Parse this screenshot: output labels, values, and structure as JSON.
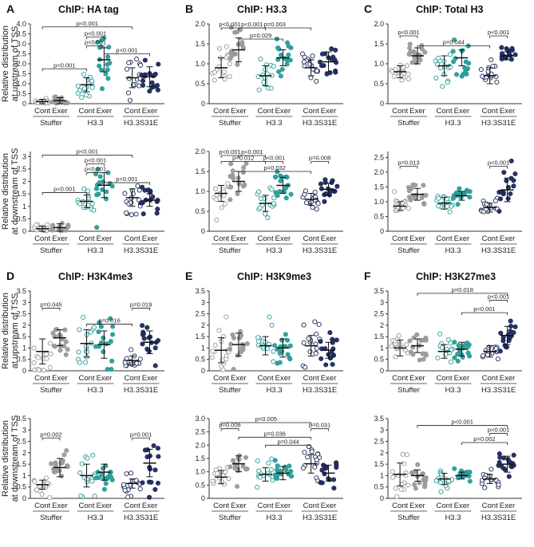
{
  "figure": {
    "y_label_line1": "Relative distribution",
    "y_label_upstream": "at upstream of TSS",
    "y_label_downstream": "at downstream of TSS"
  },
  "colors": {
    "Stuffer": "#9a9a9a",
    "H3.3": "#2a9d98",
    "H3.3S31E": "#1e2a5a"
  },
  "chart_data": [
    {
      "type": "scatter",
      "letter": "A",
      "title": "ChIP: HA tag",
      "region": "upstream",
      "ylim": [
        0,
        4.0
      ],
      "ticks": [
        0,
        0.5,
        1.0,
        1.5,
        2.0,
        2.5,
        3.0,
        3.5,
        4.0
      ],
      "tick_labels": [
        "0",
        "0.5",
        "1.0",
        "1.5",
        "2.0",
        "2.5",
        "3.0",
        "3.5",
        "4.0"
      ],
      "conditions": [
        "Cont",
        "Exer",
        "Cont",
        "Exer",
        "Cont",
        "Exer"
      ],
      "groups": [
        "Stuffer",
        "H3.3",
        "H3.3S31E"
      ],
      "means": [
        0.1,
        0.15,
        0.95,
        2.2,
        1.3,
        1.35
      ],
      "sds": [
        0.12,
        0.15,
        0.35,
        0.6,
        0.5,
        0.5
      ],
      "brackets": [
        {
          "from": 0,
          "to": 4,
          "label": "p<0.001"
        },
        {
          "from": 2,
          "to": 3,
          "label": "p<0.001"
        },
        {
          "from": 0,
          "to": 2,
          "label": "p<0.001"
        },
        {
          "from": 2,
          "to": 3,
          "label": "p<0.001"
        },
        {
          "from": 3,
          "to": 5,
          "label": "p<0.001"
        }
      ],
      "bracket_y": [
        3.85,
        2.9,
        1.75,
        3.35,
        2.5
      ]
    },
    {
      "type": "scatter",
      "letter": "B",
      "title": "ChIP: H3.3",
      "region": "upstream",
      "ylim": [
        0,
        2.0
      ],
      "ticks": [
        0,
        0.5,
        1.0,
        1.5,
        2.0
      ],
      "tick_labels": [
        "0",
        "0.5",
        "1.0",
        "1.5",
        "2.0"
      ],
      "conditions": [
        "Cont",
        "Exer",
        "Cont",
        "Exer",
        "Cont",
        "Exer"
      ],
      "groups": [
        "Stuffer",
        "H3.3",
        "H3.3S31E"
      ],
      "means": [
        0.9,
        1.35,
        0.7,
        1.15,
        0.9,
        1.05
      ],
      "sds": [
        0.25,
        0.3,
        0.25,
        0.2,
        0.2,
        0.25
      ],
      "brackets": [
        {
          "from": 0,
          "to": 1,
          "label": "p<0.001"
        },
        {
          "from": 1,
          "to": 2,
          "label": "p<0.001"
        },
        {
          "from": 1,
          "to": 4,
          "label": "p=0.003"
        },
        {
          "from": 1,
          "to": 3,
          "label": "p=0.029"
        }
      ],
      "bracket_y": [
        1.9,
        1.9,
        1.9,
        1.62
      ]
    },
    {
      "type": "scatter",
      "letter": "C",
      "title": "ChIP: Total H3",
      "region": "upstream",
      "ylim": [
        0,
        2.0
      ],
      "ticks": [
        0,
        0.5,
        1.0,
        1.5,
        2.0
      ],
      "tick_labels": [
        "0",
        "0.5",
        "1.0",
        "1.5",
        "2.0"
      ],
      "conditions": [
        "Cont",
        "Exer",
        "Cont",
        "Exer",
        "Cont",
        "Exer"
      ],
      "groups": [
        "Stuffer",
        "H3.3",
        "H3.3S31E"
      ],
      "means": [
        0.8,
        1.2,
        0.95,
        1.15,
        0.7,
        1.2
      ],
      "sds": [
        0.15,
        0.2,
        0.25,
        0.2,
        0.2,
        0.1
      ],
      "brackets": [
        {
          "from": 0,
          "to": 1,
          "label": "p<0.001"
        },
        {
          "from": 4,
          "to": 5,
          "label": "p<0.001"
        },
        {
          "from": 1,
          "to": 4,
          "label": "p=0.044"
        }
      ],
      "bracket_y": [
        1.7,
        1.7,
        1.45
      ]
    },
    {
      "type": "scatter",
      "letter": "",
      "title": "",
      "region": "downstream",
      "ylim": [
        0,
        3.2
      ],
      "ticks": [
        0,
        0.5,
        1.0,
        1.5,
        2.0,
        2.5,
        3.0
      ],
      "tick_labels": [
        "0",
        "0.5",
        "1",
        "1.5",
        "2",
        "2.5",
        "3"
      ],
      "conditions": [
        "Cont",
        "Exer",
        "Cont",
        "Exer",
        "Cont",
        "Exer"
      ],
      "groups": [
        "Stuffer",
        "H3.3",
        "H3.3S31E"
      ],
      "means": [
        0.1,
        0.15,
        1.2,
        1.85,
        1.35,
        1.25
      ],
      "sds": [
        0.1,
        0.15,
        0.25,
        0.5,
        0.35,
        0.25
      ],
      "brackets": [
        {
          "from": 0,
          "to": 4,
          "label": "p<0.001"
        },
        {
          "from": 2,
          "to": 3,
          "label": "p<0.001"
        },
        {
          "from": 2,
          "to": 3,
          "label": "p<0.001"
        },
        {
          "from": 0,
          "to": 2,
          "label": "p<0.001"
        },
        {
          "from": 3,
          "to": 5,
          "label": "p<0.001"
        }
      ],
      "bracket_y": [
        3.05,
        2.7,
        2.35,
        1.55,
        1.95
      ]
    },
    {
      "type": "scatter",
      "letter": "",
      "title": "",
      "region": "downstream",
      "ylim": [
        0,
        2.0
      ],
      "ticks": [
        0,
        0.5,
        1.0,
        1.5,
        2.0
      ],
      "tick_labels": [
        "0",
        "0.5",
        "1.0",
        "1.5",
        "2.0"
      ],
      "conditions": [
        "Cont",
        "Exer",
        "Cont",
        "Exer",
        "Cont",
        "Exer"
      ],
      "groups": [
        "Stuffer",
        "H3.3",
        "H3.3S31E"
      ],
      "means": [
        0.95,
        1.25,
        0.7,
        1.15,
        0.8,
        1.05
      ],
      "sds": [
        0.2,
        0.25,
        0.2,
        0.2,
        0.15,
        0.15
      ],
      "brackets": [
        {
          "from": 0,
          "to": 1,
          "label": "p<0.001"
        },
        {
          "from": 1,
          "to": 2,
          "label": "p<0.001"
        },
        {
          "from": 0,
          "to": 2,
          "label": "p=0.012"
        },
        {
          "from": 2,
          "to": 3,
          "label": "p<0.001"
        },
        {
          "from": 4,
          "to": 5,
          "label": "p=0.008"
        },
        {
          "from": 1,
          "to": 4,
          "label": "p=0.032"
        }
      ],
      "bracket_y": [
        1.9,
        1.9,
        1.75,
        1.75,
        1.75,
        1.5
      ]
    },
    {
      "type": "scatter",
      "letter": "",
      "title": "",
      "region": "downstream",
      "ylim": [
        0,
        2.7
      ],
      "ticks": [
        0,
        0.5,
        1.0,
        1.5,
        2.0,
        2.5
      ],
      "tick_labels": [
        "0",
        "0.5",
        "1.0",
        "1.5",
        "2.0",
        "2.5"
      ],
      "conditions": [
        "Cont",
        "Exer",
        "Cont",
        "Exer",
        "Cont",
        "Exer"
      ],
      "groups": [
        "Stuffer",
        "H3.3",
        "H3.3S31E"
      ],
      "means": [
        0.85,
        1.25,
        0.95,
        1.2,
        0.8,
        1.4
      ],
      "sds": [
        0.15,
        0.2,
        0.2,
        0.15,
        0.15,
        0.4
      ],
      "brackets": [
        {
          "from": 0,
          "to": 1,
          "label": "p=0.013"
        },
        {
          "from": 4,
          "to": 5,
          "label": "p<0.001"
        }
      ],
      "bracket_y": [
        2.2,
        2.2
      ]
    },
    {
      "type": "scatter",
      "letter": "D",
      "title": "ChIP: H3K4me3",
      "region": "upstream",
      "ylim": [
        0,
        3.5
      ],
      "ticks": [
        0,
        0.5,
        1.0,
        1.5,
        2.0,
        2.5,
        3.0,
        3.5
      ],
      "tick_labels": [
        "0",
        "0.5",
        "1",
        "1.5",
        "2",
        "2.5",
        "3",
        "3.5"
      ],
      "conditions": [
        "Cont",
        "Exer",
        "Cont",
        "Exer",
        "Cont",
        "Exer"
      ],
      "groups": [
        "Stuffer",
        "H3.3",
        "H3.3S31E"
      ],
      "means": [
        0.85,
        1.45,
        1.2,
        1.15,
        0.45,
        1.25
      ],
      "sds": [
        0.55,
        0.35,
        0.6,
        0.6,
        0.2,
        0.5
      ],
      "brackets": [
        {
          "from": 0,
          "to": 1,
          "label": "p=0.045"
        },
        {
          "from": 4,
          "to": 5,
          "label": "p=0.019"
        },
        {
          "from": 2,
          "to": 4,
          "label": "p=0.016"
        }
      ],
      "bracket_y": [
        2.75,
        2.75,
        2.05
      ]
    },
    {
      "type": "scatter",
      "letter": "E",
      "title": "ChIP: H3K9me3",
      "region": "upstream",
      "ylim": [
        0,
        3.5
      ],
      "ticks": [
        0,
        0.5,
        1.0,
        1.5,
        2.0,
        2.5,
        3.0,
        3.5
      ],
      "tick_labels": [
        "0",
        "0.5",
        "1",
        "1.5",
        "2",
        "2.5",
        "3",
        "3.5"
      ],
      "conditions": [
        "Cont",
        "Exer",
        "Cont",
        "Exer",
        "Cont",
        "Exer"
      ],
      "groups": [
        "Stuffer",
        "H3.3",
        "H3.3S31E"
      ],
      "means": [
        0.9,
        1.15,
        1.1,
        1.0,
        1.1,
        0.9
      ],
      "sds": [
        0.55,
        0.5,
        0.4,
        0.4,
        0.45,
        0.35
      ],
      "brackets": [],
      "bracket_y": []
    },
    {
      "type": "scatter",
      "letter": "F",
      "title": "ChIP: H3K27me3",
      "region": "upstream",
      "ylim": [
        0,
        3.5
      ],
      "ticks": [
        0,
        0.5,
        1.0,
        1.5,
        2.0,
        2.5,
        3.0,
        3.5
      ],
      "tick_labels": [
        "0",
        "0.5",
        "1",
        "1.5",
        "2",
        "2.5",
        "3",
        "3.5"
      ],
      "conditions": [
        "Cont",
        "Exer",
        "Cont",
        "Exer",
        "Cont",
        "Exer"
      ],
      "groups": [
        "Stuffer",
        "H3.3",
        "H3.3S31E"
      ],
      "means": [
        1.0,
        1.1,
        0.85,
        0.95,
        0.85,
        1.55
      ],
      "sds": [
        0.35,
        0.3,
        0.3,
        0.3,
        0.25,
        0.4
      ],
      "brackets": [
        {
          "from": 1,
          "to": 5,
          "label": "p=0.018"
        },
        {
          "from": 4,
          "to": 5,
          "label": "p<0.001"
        },
        {
          "from": 3,
          "to": 5,
          "label": "p<0.001"
        }
      ],
      "bracket_y": [
        3.4,
        3.1,
        2.55
      ]
    },
    {
      "type": "scatter",
      "letter": "",
      "title": "",
      "region": "downstream",
      "ylim": [
        0,
        3.5
      ],
      "ticks": [
        0,
        0.5,
        1.0,
        1.5,
        2.0,
        2.5,
        3.0,
        3.5
      ],
      "tick_labels": [
        "0",
        "0.5",
        "1",
        "1.5",
        "2",
        "2.5",
        "3",
        "3.5"
      ],
      "conditions": [
        "Cont",
        "Exer",
        "Cont",
        "Exer",
        "Cont",
        "Exer"
      ],
      "groups": [
        "Stuffer",
        "H3.3",
        "H3.3S31E"
      ],
      "means": [
        0.6,
        1.35,
        1.0,
        1.15,
        0.65,
        1.55
      ],
      "sds": [
        0.2,
        0.4,
        0.5,
        0.35,
        0.2,
        0.6
      ],
      "brackets": [
        {
          "from": 0,
          "to": 1,
          "label": "p=0.002"
        },
        {
          "from": 4,
          "to": 5,
          "label": "p=0.001"
        }
      ],
      "bracket_y": [
        2.65,
        2.65
      ]
    },
    {
      "type": "scatter",
      "letter": "",
      "title": "",
      "region": "downstream",
      "ylim": [
        0,
        3.0
      ],
      "ticks": [
        0,
        0.5,
        1.0,
        1.5,
        2.0,
        2.5,
        3.0
      ],
      "tick_labels": [
        "0",
        "0.5",
        "1.0",
        "1.5",
        "2.0",
        "2.5",
        "3.0"
      ],
      "conditions": [
        "Cont",
        "Exer",
        "Cont",
        "Exer",
        "Cont",
        "Exer"
      ],
      "groups": [
        "Stuffer",
        "H3.3",
        "H3.3S31E"
      ],
      "means": [
        0.8,
        1.3,
        0.9,
        0.95,
        1.3,
        0.95
      ],
      "sds": [
        0.25,
        0.3,
        0.25,
        0.25,
        0.35,
        0.3
      ],
      "brackets": [
        {
          "from": 0,
          "to": 4,
          "label": "p=0.005"
        },
        {
          "from": 0,
          "to": 1,
          "label": "p=0.006"
        },
        {
          "from": 4,
          "to": 5,
          "label": "p=0.031"
        },
        {
          "from": 1,
          "to": 4,
          "label": "p=0.036"
        },
        {
          "from": 2,
          "to": 4,
          "label": "p=0.044"
        }
      ],
      "bracket_y": [
        2.85,
        2.62,
        2.62,
        2.3,
        2.0
      ]
    },
    {
      "type": "scatter",
      "letter": "",
      "title": "",
      "region": "downstream",
      "ylim": [
        0,
        3.5
      ],
      "ticks": [
        0,
        0.5,
        1.0,
        1.5,
        2.0,
        2.5,
        3.0,
        3.5
      ],
      "tick_labels": [
        "0",
        "0.5",
        "1",
        "1.5",
        "2",
        "2.5",
        "3",
        "3.5"
      ],
      "conditions": [
        "Cont",
        "Exer",
        "Cont",
        "Exer",
        "Cont",
        "Exer"
      ],
      "groups": [
        "Stuffer",
        "H3.3",
        "H3.3S31E"
      ],
      "means": [
        1.05,
        1.0,
        0.85,
        1.0,
        0.85,
        1.5
      ],
      "sds": [
        0.5,
        0.25,
        0.25,
        0.15,
        0.2,
        0.35
      ],
      "brackets": [
        {
          "from": 1,
          "to": 5,
          "label": "p<0.001"
        },
        {
          "from": 4,
          "to": 5,
          "label": "p<0.001"
        },
        {
          "from": 3,
          "to": 5,
          "label": "p=0.002"
        }
      ],
      "bracket_y": [
        3.2,
        2.85,
        2.45
      ]
    }
  ]
}
